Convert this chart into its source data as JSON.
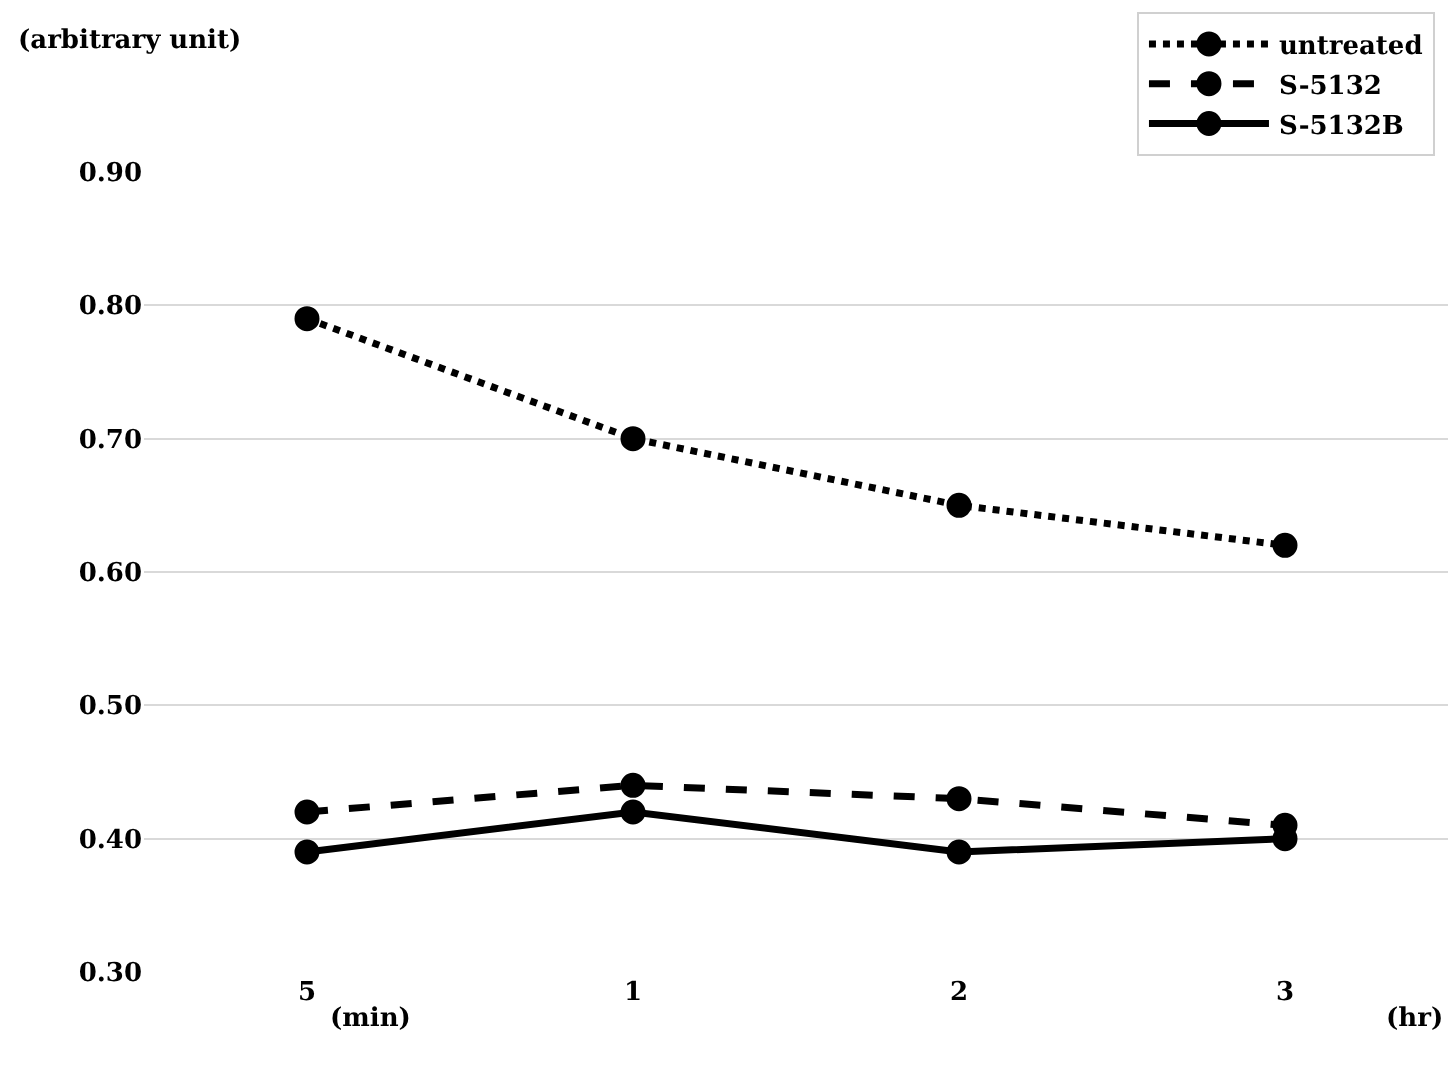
{
  "chart_data": {
    "type": "line",
    "ylabel": "(arbitrary unit)",
    "categories": [
      "5",
      "1",
      "2",
      "3"
    ],
    "series": [
      {
        "name": "untreated",
        "color": "#000000",
        "line_style": "dotted",
        "values": [
          0.79,
          0.7,
          0.65,
          0.62
        ]
      },
      {
        "name": "S-5132",
        "color": "#000000",
        "line_style": "dashed",
        "values": [
          0.42,
          0.44,
          0.43,
          0.41
        ]
      },
      {
        "name": "S-5132B",
        "color": "#000000",
        "line_style": "solid",
        "values": [
          0.39,
          0.42,
          0.39,
          0.4
        ]
      }
    ],
    "ylim": [
      0.3,
      0.9
    ],
    "yticks": [
      {
        "value": 0.3,
        "label": "0.30"
      },
      {
        "value": 0.4,
        "label": "0.40"
      },
      {
        "value": 0.5,
        "label": "0.50"
      },
      {
        "value": 0.6,
        "label": "0.60"
      },
      {
        "value": 0.7,
        "label": "0.70"
      },
      {
        "value": 0.8,
        "label": "0.80"
      },
      {
        "value": 0.9,
        "label": "0.90"
      }
    ],
    "grid": "y",
    "legend": "top right",
    "marker": "circle",
    "annotations": [
      "(min)",
      "(hr)"
    ]
  }
}
